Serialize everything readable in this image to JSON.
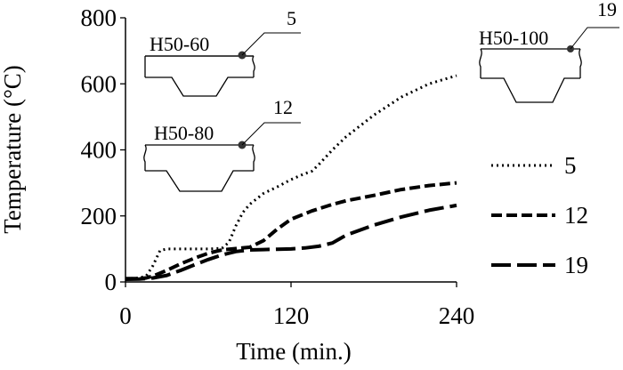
{
  "chart_data": {
    "type": "line",
    "xlabel": "Time (min.)",
    "ylabel": "Temperature (°C)",
    "xlim": [
      0,
      240
    ],
    "ylim": [
      0,
      800
    ],
    "xticks": [
      "0",
      "120",
      "240"
    ],
    "yticks": [
      "0",
      "200",
      "400",
      "600",
      "800"
    ],
    "grid": false,
    "legend_position": "right",
    "series": [
      {
        "name": "5",
        "style": "dotted",
        "x": [
          0,
          10,
          15,
          20,
          25,
          30,
          60,
          70,
          75,
          80,
          85,
          90,
          100,
          110,
          120,
          130,
          135,
          140,
          150,
          160,
          180,
          200,
          220,
          240
        ],
        "y": [
          10,
          12,
          18,
          50,
          95,
          100,
          100,
          102,
          120,
          170,
          210,
          235,
          268,
          288,
          310,
          328,
          335,
          355,
          400,
          440,
          505,
          560,
          600,
          625
        ]
      },
      {
        "name": "12",
        "style": "dashed",
        "x": [
          0,
          10,
          15,
          20,
          30,
          40,
          50,
          60,
          70,
          80,
          90,
          100,
          110,
          120,
          135,
          150,
          160,
          180,
          200,
          220,
          240
        ],
        "y": [
          10,
          10,
          12,
          18,
          35,
          55,
          72,
          87,
          97,
          101,
          105,
          125,
          160,
          190,
          215,
          235,
          246,
          262,
          280,
          292,
          300
        ]
      },
      {
        "name": "19",
        "style": "dashed",
        "x": [
          0,
          10,
          20,
          30,
          40,
          50,
          60,
          70,
          80,
          90,
          100,
          110,
          120,
          130,
          140,
          150,
          160,
          180,
          200,
          220,
          240
        ],
        "y": [
          8,
          9,
          12,
          20,
          35,
          52,
          68,
          82,
          92,
          97,
          98,
          99,
          100,
          103,
          108,
          118,
          142,
          172,
          197,
          217,
          232
        ]
      }
    ],
    "annotations": [
      {
        "section": "H50-60",
        "point": "5"
      },
      {
        "section": "H50-80",
        "point": "12"
      },
      {
        "section": "H50-100",
        "point": "19"
      }
    ]
  },
  "colors": {
    "line": "#000000",
    "background": "#ffffff"
  }
}
